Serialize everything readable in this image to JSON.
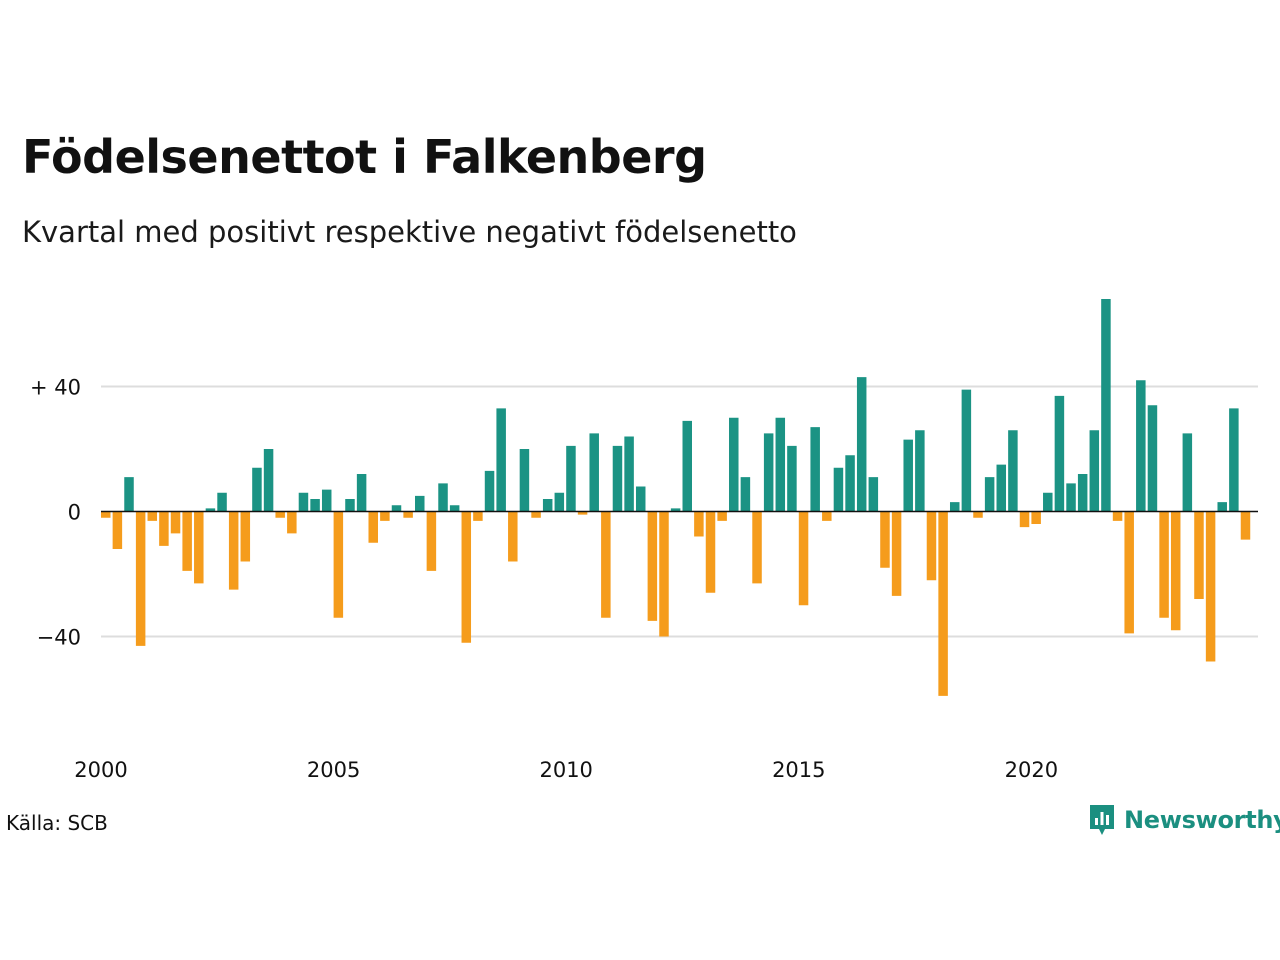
{
  "header": {
    "title": "Födelsenettot i Falkenberg",
    "subtitle": "Kvartal med positivt respektive negativt födelsenetto"
  },
  "footer": {
    "source": "Källa: SCB",
    "brand": "Newsworthy",
    "brand_icon": "newsworthy-logo-icon"
  },
  "colors": {
    "positive": "#1b9384",
    "negative": "#f59c1c",
    "grid": "#dddddd",
    "brand": "#1b8f80"
  },
  "chart_data": {
    "type": "bar",
    "start_year": 2000,
    "periods_per_year": 4,
    "x_tick_labels": [
      "2000",
      "2005",
      "2010",
      "2015",
      "2020"
    ],
    "y_tick_labels": [
      "+ 40",
      "0",
      "−40"
    ],
    "y_ticks": [
      40,
      0,
      -40
    ],
    "ylim": [
      -62,
      72
    ],
    "grid": true,
    "series": [
      {
        "values": [
          -2,
          -12,
          11,
          -43,
          -3,
          -11,
          -7,
          -19,
          -23,
          1,
          6,
          -25,
          -16,
          14,
          20,
          -2,
          -7,
          6,
          4,
          7,
          -34,
          4,
          12,
          -10,
          -3,
          2,
          -2,
          5,
          -19,
          9,
          2,
          -42,
          -3,
          13,
          33,
          -16,
          20,
          -2,
          4,
          6,
          21,
          -1,
          25,
          -34,
          21,
          24,
          8,
          -35,
          -40,
          1,
          29,
          -8,
          -26,
          -3,
          30,
          11,
          -23,
          25,
          30,
          21,
          -30,
          27,
          -3,
          14,
          18,
          43,
          11,
          -18,
          -27,
          23,
          26,
          -22,
          -59,
          3,
          39,
          -2,
          11,
          15,
          26,
          -5,
          -4,
          6,
          37,
          9,
          12,
          26,
          68,
          -3,
          -39,
          42,
          34,
          -34,
          -38,
          25,
          -28,
          -48,
          3,
          33,
          -9
        ]
      }
    ]
  }
}
